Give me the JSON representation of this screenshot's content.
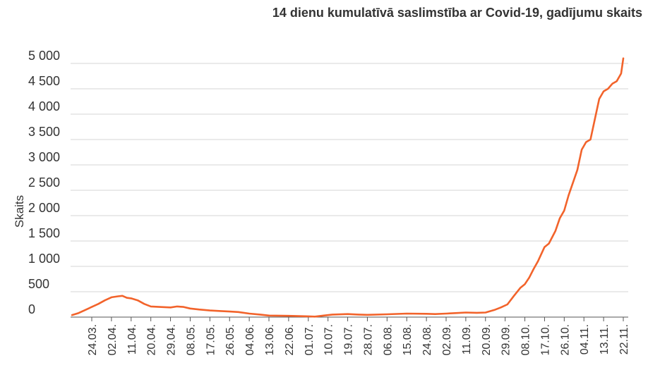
{
  "chart_data": {
    "type": "line",
    "title": "14 dienu kumulatīvā saslimstība ar Covid-19, gadījumu skaits",
    "ylabel": "Skaits",
    "xlabel": "",
    "ylim": [
      0,
      5000
    ],
    "y_ticks": [
      {
        "value": 0,
        "label": "0"
      },
      {
        "value": 500,
        "label": "500"
      },
      {
        "value": 1000,
        "label": "1 000"
      },
      {
        "value": 1500,
        "label": "1 500"
      },
      {
        "value": 2000,
        "label": "2 000"
      },
      {
        "value": 2500,
        "label": "2 500"
      },
      {
        "value": 3000,
        "label": "3 000"
      },
      {
        "value": 3500,
        "label": "3 500"
      },
      {
        "value": 4000,
        "label": "4 000"
      },
      {
        "value": 4500,
        "label": "4 500"
      },
      {
        "value": 5000,
        "label": "5 000"
      }
    ],
    "x_tick_labels": [
      "24.03.",
      "02.04.",
      "11.04.",
      "20.04.",
      "29.04.",
      "08.05.",
      "17.05.",
      "26.05.",
      "04.06.",
      "13.06.",
      "22.06.",
      "01.07.",
      "10.07.",
      "19.07.",
      "28.07.",
      "06.08.",
      "15.08.",
      "24.08.",
      "02.09.",
      "11.09.",
      "20.09.",
      "29.09.",
      "08.10.",
      "17.10.",
      "26.10.",
      "04.11.",
      "13.11.",
      "22.11."
    ],
    "x_tick_dates": [
      "2020-03-24",
      "2020-04-02",
      "2020-04-11",
      "2020-04-20",
      "2020-04-29",
      "2020-05-08",
      "2020-05-17",
      "2020-05-26",
      "2020-06-04",
      "2020-06-13",
      "2020-06-22",
      "2020-07-01",
      "2020-07-10",
      "2020-07-19",
      "2020-07-28",
      "2020-08-06",
      "2020-08-15",
      "2020-08-24",
      "2020-09-02",
      "2020-09-11",
      "2020-09-20",
      "2020-09-29",
      "2020-10-08",
      "2020-10-17",
      "2020-10-26",
      "2020-11-04",
      "2020-11-13",
      "2020-11-22"
    ],
    "series": [
      {
        "color": "#F2632B",
        "points": [
          [
            "2020-03-15",
            40
          ],
          [
            "2020-03-18",
            80
          ],
          [
            "2020-03-21",
            140
          ],
          [
            "2020-03-24",
            200
          ],
          [
            "2020-03-27",
            260
          ],
          [
            "2020-03-30",
            330
          ],
          [
            "2020-04-02",
            390
          ],
          [
            "2020-04-05",
            410
          ],
          [
            "2020-04-07",
            420
          ],
          [
            "2020-04-09",
            380
          ],
          [
            "2020-04-11",
            370
          ],
          [
            "2020-04-14",
            330
          ],
          [
            "2020-04-17",
            260
          ],
          [
            "2020-04-20",
            210
          ],
          [
            "2020-04-24",
            200
          ],
          [
            "2020-04-29",
            190
          ],
          [
            "2020-05-02",
            210
          ],
          [
            "2020-05-05",
            200
          ],
          [
            "2020-05-08",
            170
          ],
          [
            "2020-05-12",
            150
          ],
          [
            "2020-05-17",
            130
          ],
          [
            "2020-05-22",
            120
          ],
          [
            "2020-05-26",
            110
          ],
          [
            "2020-05-30",
            100
          ],
          [
            "2020-06-04",
            70
          ],
          [
            "2020-06-09",
            50
          ],
          [
            "2020-06-13",
            30
          ],
          [
            "2020-06-22",
            25
          ],
          [
            "2020-07-01",
            15
          ],
          [
            "2020-07-04",
            10
          ],
          [
            "2020-07-08",
            30
          ],
          [
            "2020-07-12",
            50
          ],
          [
            "2020-07-19",
            60
          ],
          [
            "2020-07-24",
            50
          ],
          [
            "2020-07-28",
            45
          ],
          [
            "2020-08-06",
            55
          ],
          [
            "2020-08-15",
            70
          ],
          [
            "2020-08-24",
            65
          ],
          [
            "2020-08-28",
            60
          ],
          [
            "2020-09-02",
            70
          ],
          [
            "2020-09-07",
            80
          ],
          [
            "2020-09-11",
            90
          ],
          [
            "2020-09-16",
            85
          ],
          [
            "2020-09-20",
            90
          ],
          [
            "2020-09-24",
            140
          ],
          [
            "2020-09-27",
            190
          ],
          [
            "2020-09-30",
            250
          ],
          [
            "2020-10-03",
            420
          ],
          [
            "2020-10-06",
            580
          ],
          [
            "2020-10-08",
            650
          ],
          [
            "2020-10-10",
            780
          ],
          [
            "2020-10-12",
            950
          ],
          [
            "2020-10-14",
            1100
          ],
          [
            "2020-10-17",
            1380
          ],
          [
            "2020-10-19",
            1450
          ],
          [
            "2020-10-22",
            1700
          ],
          [
            "2020-10-24",
            1950
          ],
          [
            "2020-10-26",
            2100
          ],
          [
            "2020-10-28",
            2400
          ],
          [
            "2020-10-30",
            2650
          ],
          [
            "2020-11-01",
            2900
          ],
          [
            "2020-11-03",
            3300
          ],
          [
            "2020-11-05",
            3450
          ],
          [
            "2020-11-07",
            3500
          ],
          [
            "2020-11-09",
            3900
          ],
          [
            "2020-11-11",
            4300
          ],
          [
            "2020-11-13",
            4450
          ],
          [
            "2020-11-15",
            4500
          ],
          [
            "2020-11-17",
            4600
          ],
          [
            "2020-11-19",
            4650
          ],
          [
            "2020-11-21",
            4800
          ],
          [
            "2020-11-22",
            5100
          ]
        ]
      }
    ],
    "grid": true,
    "legend": "none"
  }
}
